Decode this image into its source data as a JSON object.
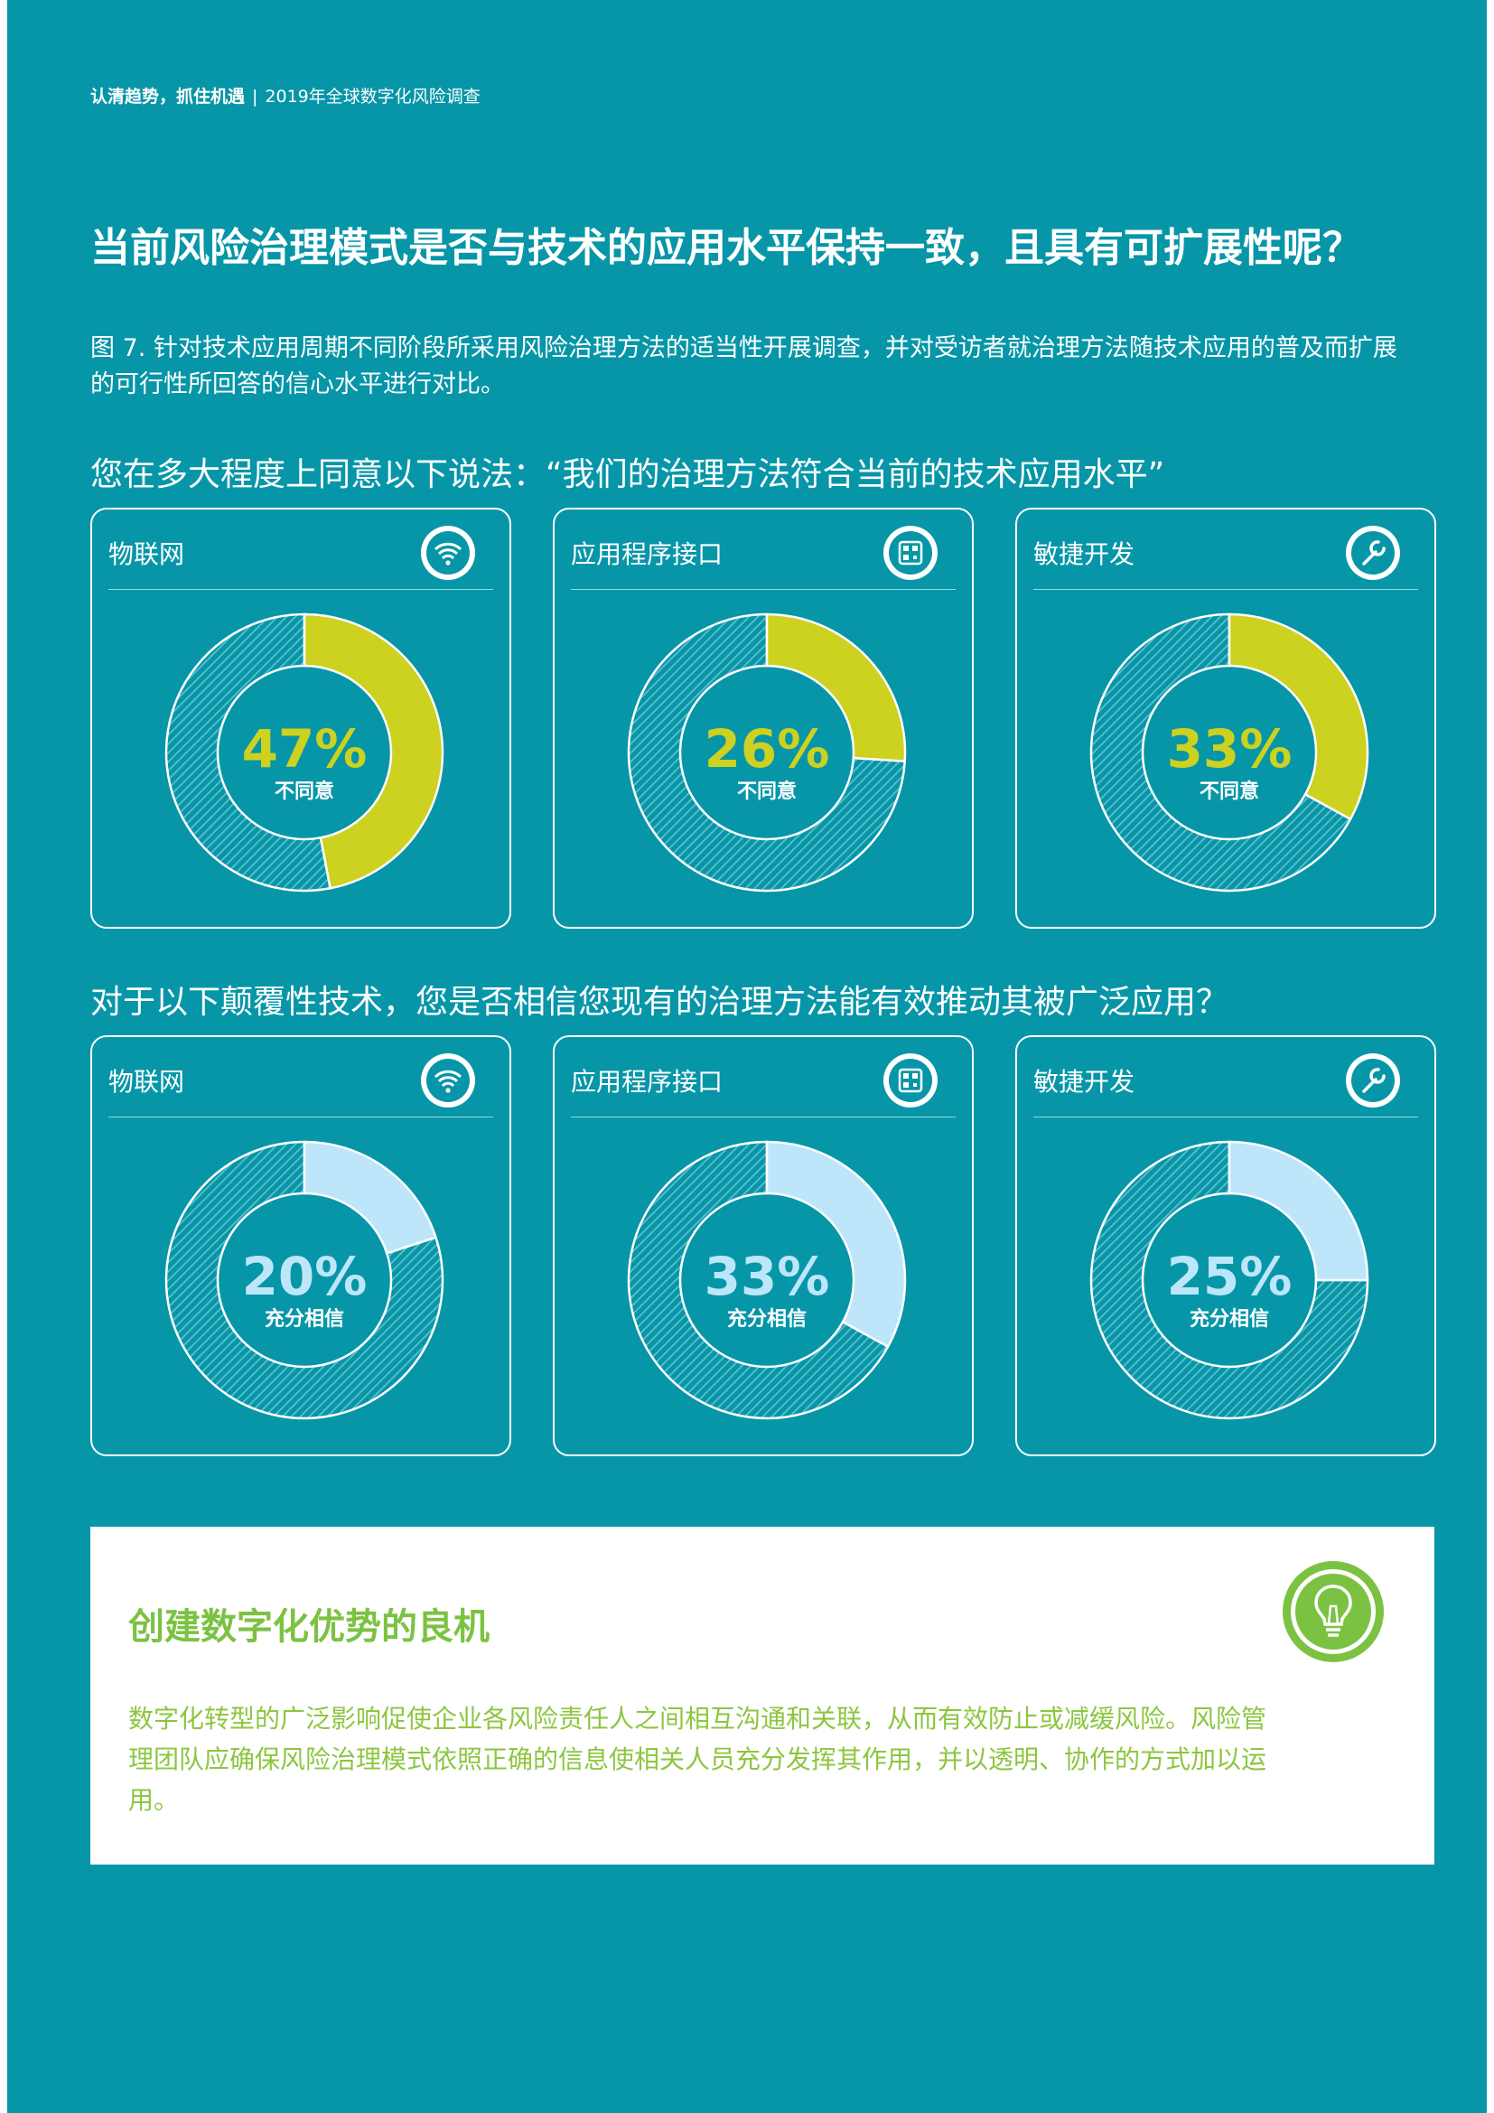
{
  "header": {
    "running_bold": "认清趋势，抓住机遇",
    "running_sep": "|",
    "running_rest": "2019年全球数字化风险调查"
  },
  "title": "当前风险治理模式是否与技术的应用水平保持一致，且具有可扩展性呢？",
  "caption": "图 7. 针对技术应用周期不同阶段所采用风险治理方法的适当性开展调查，并对受访者就治理方法随技术应用的普及而扩展的可行性所回答的信心水平进行对比。",
  "question_1": "您在多大程度上同意以下说法：“我们的治理方法符合当前的技术应用水平”",
  "question_2": "对于以下颠覆性技术，您是否相信您现有的治理方法能有效推动其被广泛应用？",
  "colors": {
    "page_bg": "#0796a8",
    "yellow_seg": "#cdd11f",
    "lightblue_seg": "#bde6fa",
    "ring_hatch": "#5ebfcc",
    "green_text": "#7cc242"
  },
  "chart_data": [
    {
      "type": "pie",
      "group": 1,
      "category": "物联网",
      "icon": "wifi-icon",
      "value": 47,
      "display": "47%",
      "label": "不同意"
    },
    {
      "type": "pie",
      "group": 1,
      "category": "应用程序接口",
      "icon": "qr-code-icon",
      "value": 26,
      "display": "26%",
      "label": "不同意"
    },
    {
      "type": "pie",
      "group": 1,
      "category": "敏捷开发",
      "icon": "wrench-icon",
      "value": 33,
      "display": "33%",
      "label": "不同意"
    },
    {
      "type": "pie",
      "group": 2,
      "category": "物联网",
      "icon": "wifi-icon",
      "value": 20,
      "display": "20%",
      "label": "充分相信"
    },
    {
      "type": "pie",
      "group": 2,
      "category": "应用程序接口",
      "icon": "qr-code-icon",
      "value": 33,
      "display": "33%",
      "label": "充分相信"
    },
    {
      "type": "pie",
      "group": 2,
      "category": "敏捷开发",
      "icon": "wrench-icon",
      "value": 25,
      "display": "25%",
      "label": "充分相信"
    }
  ],
  "callout": {
    "title": "创建数字化优势的良机",
    "text": "数字化转型的广泛影响促使企业各风险责任人之间相互沟通和关联，从而有效防止或减缓风险。风险管理团队应确保风险治理模式依照正确的信息使相关人员充分发挥其作用，并以透明、协作的方式加以运用。",
    "icon": "lightbulb-icon"
  }
}
